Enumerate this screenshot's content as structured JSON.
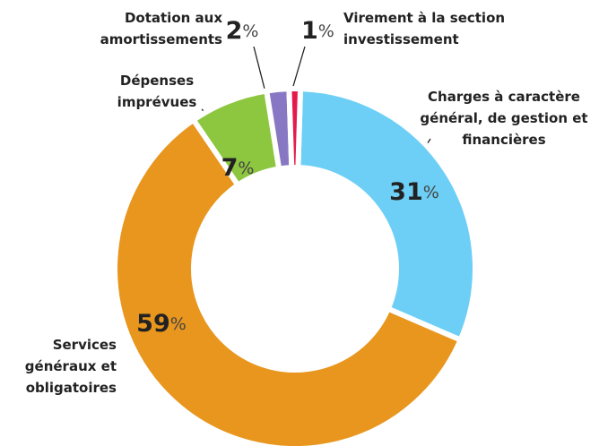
{
  "chart_data": {
    "type": "donut",
    "categories": [
      "Charges à caractère général, de gestion et financières",
      "Services généraux et obligatoires",
      "Dépenses imprévues",
      "Dotation aux amortissements",
      "Virement à la section investissement"
    ],
    "values": [
      31,
      59,
      7,
      2,
      1
    ],
    "value_labels": [
      "31%",
      "59%",
      "7%",
      "2%",
      "1%"
    ],
    "colors": [
      "#6dcff6",
      "#e8961e",
      "#8dc63f",
      "#8878c3",
      "#e5194b"
    ]
  }
}
